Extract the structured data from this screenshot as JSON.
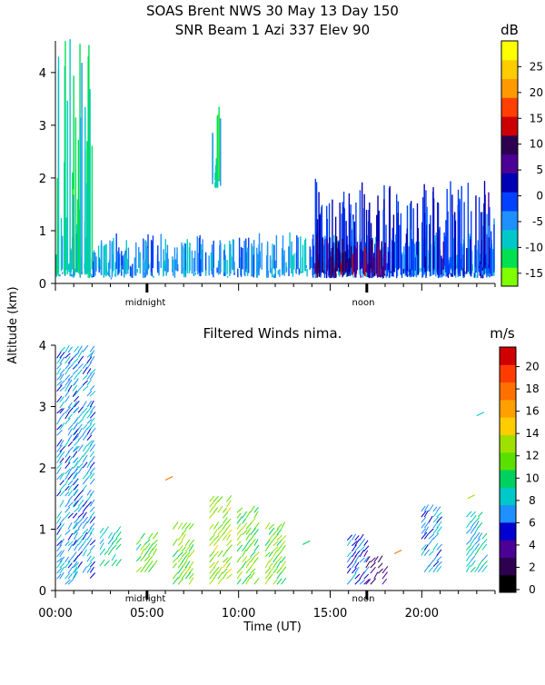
{
  "header": {
    "title_line1": "SOAS Brent NWS  30 May 13 Day 150",
    "title_line2": "SNR Beam 1 Azi 337 Elev 90"
  },
  "shared": {
    "ylabel": "Altitude (km)",
    "xlabel": "Time (UT)",
    "midnight_label": "midnight",
    "noon_label": "noon"
  },
  "chart_data": [
    {
      "id": "snr",
      "type": "heatmap",
      "title": "SNR Beam 1 Azi 337 Elev 90",
      "ylabel": "Altitude (km)",
      "ylim": [
        0,
        4.6
      ],
      "yticks": [
        "0",
        "1",
        "2",
        "3",
        "4"
      ],
      "xlim_hours": [
        0,
        24
      ],
      "colorbar": {
        "unit": "dB",
        "ticks": [
          "-15",
          "-10",
          "-5",
          "0",
          "5",
          "10",
          "15",
          "20",
          "25"
        ],
        "colors": [
          "#7fff00",
          "#00e050",
          "#00c8c8",
          "#1e90ff",
          "#0040ff",
          "#0000b4",
          "#4b0096",
          "#2d0050",
          "#cc0000",
          "#ff4000",
          "#ff9900",
          "#ffcc00",
          "#ffff00"
        ]
      },
      "description_regions": [
        {
          "hours": [
            0,
            24
          ],
          "alt_km": [
            0.1,
            0.8
          ],
          "db": -8
        },
        {
          "hours": [
            14,
            24
          ],
          "alt_km": [
            0.1,
            1.8
          ],
          "db": -2
        },
        {
          "hours": [
            14,
            18
          ],
          "alt_km": [
            0.1,
            0.8
          ],
          "db": 5
        },
        {
          "hours": [
            0,
            2
          ],
          "alt_km": [
            0.1,
            4.6
          ],
          "db": -12
        },
        {
          "hours": [
            8.5,
            9
          ],
          "alt_km": [
            1.8,
            3.3
          ],
          "db": -12
        }
      ]
    },
    {
      "id": "winds",
      "type": "scatter",
      "title": "Filtered Winds nima.",
      "ylabel": "Altitude (km)",
      "xlabel": "Time (UT)",
      "ylim": [
        0,
        4.0
      ],
      "yticks": [
        "0",
        "1",
        "2",
        "3",
        "4"
      ],
      "xlim_hours": [
        0,
        24
      ],
      "xticks": [
        "00:00",
        "05:00",
        "10:00",
        "15:00",
        "20:00"
      ],
      "colorbar": {
        "unit": "m/s",
        "ticks": [
          "0",
          "2",
          "4",
          "6",
          "8",
          "10",
          "12",
          "14",
          "16",
          "18",
          "20"
        ],
        "colors": [
          "#000000",
          "#2d0050",
          "#4b0096",
          "#0000d0",
          "#1e90ff",
          "#00c8c8",
          "#00d060",
          "#5ae000",
          "#a0e000",
          "#ffcc00",
          "#ffa000",
          "#ff7000",
          "#ff3c00",
          "#d00000"
        ]
      },
      "clusters": [
        {
          "hour": 0.6,
          "alt_km": [
            0.1,
            3.9
          ],
          "speed": 7
        },
        {
          "hour": 1.6,
          "alt_km": [
            0.2,
            3.9
          ],
          "speed": 7
        },
        {
          "hour": 3,
          "alt_km": [
            0.4,
            1.0
          ],
          "speed": 9
        },
        {
          "hour": 5,
          "alt_km": [
            0.3,
            0.9
          ],
          "speed": 11
        },
        {
          "hour": 7,
          "alt_km": [
            0.1,
            1.0
          ],
          "speed": 12
        },
        {
          "hour": 9,
          "alt_km": [
            0.1,
            1.5
          ],
          "speed": 13
        },
        {
          "hour": 10.5,
          "alt_km": [
            0.1,
            1.3
          ],
          "speed": 12
        },
        {
          "hour": 12,
          "alt_km": [
            0.1,
            1.0
          ],
          "speed": 12
        },
        {
          "hour": 16.5,
          "alt_km": [
            0.1,
            0.9
          ],
          "speed": 6
        },
        {
          "hour": 17.5,
          "alt_km": [
            0.1,
            0.5
          ],
          "speed": 3
        },
        {
          "hour": 20.5,
          "alt_km": [
            0.3,
            1.3
          ],
          "speed": 7
        },
        {
          "hour": 23,
          "alt_km": [
            0.3,
            1.2
          ],
          "speed": 8
        }
      ]
    }
  ]
}
